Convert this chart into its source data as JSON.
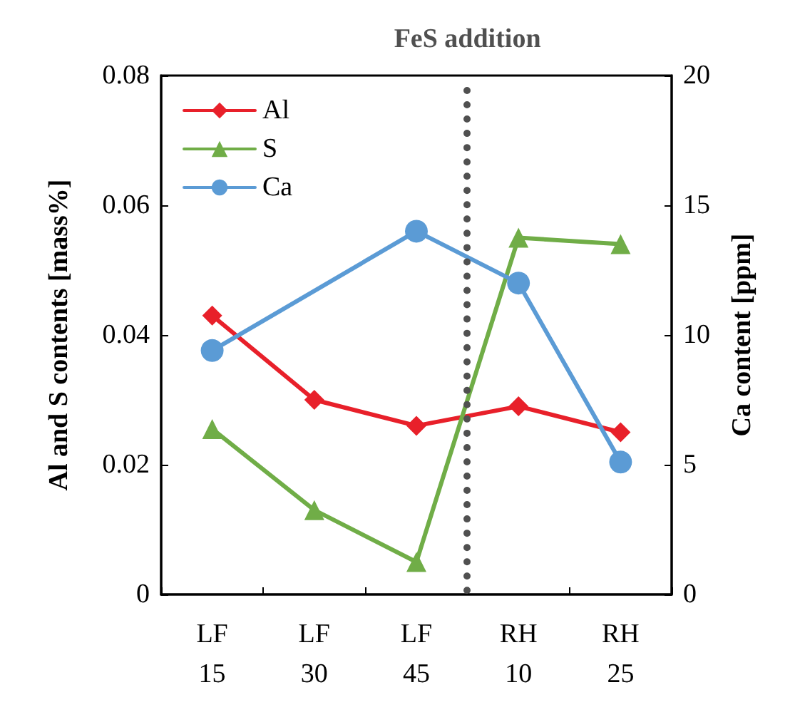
{
  "chart_data": {
    "type": "line",
    "categories": [
      "LF\n15",
      "LF\n30",
      "LF\n45",
      "RH\n10",
      "RH\n25"
    ],
    "ylabel": "Al and S contents [mass%]",
    "y2label": "Ca content [ppm]",
    "series": [
      {
        "name": "Al",
        "color": "#e8202a",
        "marker": "diamond",
        "values": [
          0.043,
          0.03,
          0.026,
          0.029,
          0.025
        ]
      },
      {
        "name": "S",
        "color": "#70ad47",
        "marker": "triangle",
        "values": [
          0.0255,
          0.013,
          0.005,
          0.055,
          0.054
        ]
      },
      {
        "name": "Ca",
        "color": "#5b9bd5",
        "marker": "circle",
        "axis": "y2",
        "x": [
          "LF\n15",
          "LF\n45",
          "RH\n10",
          "RH\n25"
        ],
        "values": [
          9.4,
          14.0,
          12.0,
          5.1
        ]
      }
    ],
    "ylim": [
      0,
      0.08
    ],
    "yticks": [
      0,
      0.02,
      0.04,
      0.06,
      0.08
    ],
    "y2lim": [
      0,
      20
    ],
    "y2ticks": [
      0,
      5,
      10,
      15,
      20
    ],
    "annotations": [
      "FeS addition"
    ],
    "legend": "top left",
    "grid": false
  }
}
